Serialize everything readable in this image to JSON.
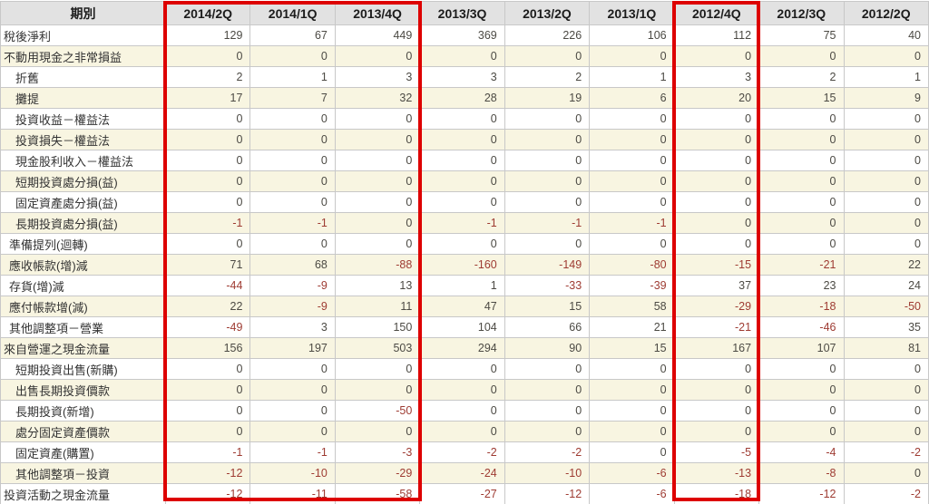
{
  "table": {
    "header_label": "期別",
    "columns": [
      "2014/2Q",
      "2014/1Q",
      "2013/4Q",
      "2013/3Q",
      "2013/2Q",
      "2013/1Q",
      "2012/4Q",
      "2012/3Q",
      "2012/2Q"
    ],
    "rows": [
      {
        "label": "稅後淨利",
        "indent": 0,
        "values": [
          129,
          67,
          449,
          369,
          226,
          106,
          112,
          75,
          40
        ]
      },
      {
        "label": "不動用現金之非常損益",
        "indent": 0,
        "values": [
          0,
          0,
          0,
          0,
          0,
          0,
          0,
          0,
          0
        ]
      },
      {
        "label": "折舊",
        "indent": 2,
        "values": [
          2,
          1,
          3,
          3,
          2,
          1,
          3,
          2,
          1
        ]
      },
      {
        "label": "攤提",
        "indent": 2,
        "values": [
          17,
          7,
          32,
          28,
          19,
          6,
          20,
          15,
          9
        ]
      },
      {
        "label": "投資收益－權益法",
        "indent": 2,
        "values": [
          0,
          0,
          0,
          0,
          0,
          0,
          0,
          0,
          0
        ]
      },
      {
        "label": "投資損失－權益法",
        "indent": 2,
        "values": [
          0,
          0,
          0,
          0,
          0,
          0,
          0,
          0,
          0
        ]
      },
      {
        "label": "現金股利收入－權益法",
        "indent": 2,
        "values": [
          0,
          0,
          0,
          0,
          0,
          0,
          0,
          0,
          0
        ]
      },
      {
        "label": "短期投資處分損(益)",
        "indent": 2,
        "values": [
          0,
          0,
          0,
          0,
          0,
          0,
          0,
          0,
          0
        ]
      },
      {
        "label": "固定資產處分損(益)",
        "indent": 2,
        "values": [
          0,
          0,
          0,
          0,
          0,
          0,
          0,
          0,
          0
        ]
      },
      {
        "label": "長期投資處分損(益)",
        "indent": 2,
        "values": [
          -1,
          -1,
          0,
          -1,
          -1,
          -1,
          0,
          0,
          0
        ]
      },
      {
        "label": "準備提列(迴轉)",
        "indent": 1,
        "values": [
          0,
          0,
          0,
          0,
          0,
          0,
          0,
          0,
          0
        ]
      },
      {
        "label": "應收帳款(增)減",
        "indent": 1,
        "values": [
          71,
          68,
          -88,
          -160,
          -149,
          -80,
          -15,
          -21,
          22
        ]
      },
      {
        "label": "存貨(增)減",
        "indent": 1,
        "values": [
          -44,
          -9,
          13,
          1,
          -33,
          -39,
          37,
          23,
          24
        ]
      },
      {
        "label": "應付帳款增(減)",
        "indent": 1,
        "values": [
          22,
          -9,
          11,
          47,
          15,
          58,
          -29,
          -18,
          -50
        ]
      },
      {
        "label": "其他調整項－營業",
        "indent": 1,
        "values": [
          -49,
          3,
          150,
          104,
          66,
          21,
          -21,
          -46,
          35
        ]
      },
      {
        "label": "來自營運之現金流量",
        "indent": 0,
        "values": [
          156,
          197,
          503,
          294,
          90,
          15,
          167,
          107,
          81
        ]
      },
      {
        "label": "短期投資出售(新購)",
        "indent": 2,
        "values": [
          0,
          0,
          0,
          0,
          0,
          0,
          0,
          0,
          0
        ]
      },
      {
        "label": "出售長期投資價款",
        "indent": 2,
        "values": [
          0,
          0,
          0,
          0,
          0,
          0,
          0,
          0,
          0
        ]
      },
      {
        "label": "長期投資(新增)",
        "indent": 2,
        "values": [
          0,
          0,
          -50,
          0,
          0,
          0,
          0,
          0,
          0
        ]
      },
      {
        "label": "處分固定資產價款",
        "indent": 2,
        "values": [
          0,
          0,
          0,
          0,
          0,
          0,
          0,
          0,
          0
        ]
      },
      {
        "label": "固定資產(購置)",
        "indent": 2,
        "values": [
          -1,
          -1,
          -3,
          -2,
          -2,
          0,
          -5,
          -4,
          -2
        ]
      },
      {
        "label": "其他調整項－投資",
        "indent": 2,
        "values": [
          -12,
          -10,
          -29,
          -24,
          -10,
          -6,
          -13,
          -8,
          0
        ]
      },
      {
        "label": "投資活動之現金流量",
        "indent": 0,
        "values": [
          -12,
          -11,
          -58,
          -27,
          -12,
          -6,
          -18,
          -12,
          -2
        ]
      }
    ]
  },
  "highlight_boxes": [
    {
      "name": "recent-quarters",
      "columns": [
        "2014/2Q",
        "2014/1Q",
        "2013/4Q"
      ]
    },
    {
      "name": "year-ago-quarter",
      "columns": [
        "2012/4Q"
      ]
    }
  ],
  "colors": {
    "accent_red": "#dd0000",
    "negative_number": "#9e3b32",
    "positive_number": "#4c4a44",
    "row_alt_bg": "#f8f5e1",
    "header_bg": "#e2e2e2",
    "grid_line": "#c8c8c8"
  },
  "chart_data": {
    "type": "table",
    "title": "季現金流量表",
    "categories": [
      "2014/2Q",
      "2014/1Q",
      "2013/4Q",
      "2013/3Q",
      "2013/2Q",
      "2013/1Q",
      "2012/4Q",
      "2012/3Q",
      "2012/2Q"
    ],
    "series": [
      {
        "name": "稅後淨利",
        "values": [
          129,
          67,
          449,
          369,
          226,
          106,
          112,
          75,
          40
        ]
      },
      {
        "name": "不動用現金之非常損益",
        "values": [
          0,
          0,
          0,
          0,
          0,
          0,
          0,
          0,
          0
        ]
      },
      {
        "name": "折舊",
        "values": [
          2,
          1,
          3,
          3,
          2,
          1,
          3,
          2,
          1
        ]
      },
      {
        "name": "攤提",
        "values": [
          17,
          7,
          32,
          28,
          19,
          6,
          20,
          15,
          9
        ]
      },
      {
        "name": "投資收益－權益法",
        "values": [
          0,
          0,
          0,
          0,
          0,
          0,
          0,
          0,
          0
        ]
      },
      {
        "name": "投資損失－權益法",
        "values": [
          0,
          0,
          0,
          0,
          0,
          0,
          0,
          0,
          0
        ]
      },
      {
        "name": "現金股利收入－權益法",
        "values": [
          0,
          0,
          0,
          0,
          0,
          0,
          0,
          0,
          0
        ]
      },
      {
        "name": "短期投資處分損(益)",
        "values": [
          0,
          0,
          0,
          0,
          0,
          0,
          0,
          0,
          0
        ]
      },
      {
        "name": "固定資產處分損(益)",
        "values": [
          0,
          0,
          0,
          0,
          0,
          0,
          0,
          0,
          0
        ]
      },
      {
        "name": "長期投資處分損(益)",
        "values": [
          -1,
          -1,
          0,
          -1,
          -1,
          -1,
          0,
          0,
          0
        ]
      },
      {
        "name": "準備提列(迴轉)",
        "values": [
          0,
          0,
          0,
          0,
          0,
          0,
          0,
          0,
          0
        ]
      },
      {
        "name": "應收帳款(增)減",
        "values": [
          71,
          68,
          -88,
          -160,
          -149,
          -80,
          -15,
          -21,
          22
        ]
      },
      {
        "name": "存貨(增)減",
        "values": [
          -44,
          -9,
          13,
          1,
          -33,
          -39,
          37,
          23,
          24
        ]
      },
      {
        "name": "應付帳款增(減)",
        "values": [
          22,
          -9,
          11,
          47,
          15,
          58,
          -29,
          -18,
          -50
        ]
      },
      {
        "name": "其他調整項－營業",
        "values": [
          -49,
          3,
          150,
          104,
          66,
          21,
          -21,
          -46,
          35
        ]
      },
      {
        "name": "來自營運之現金流量",
        "values": [
          156,
          197,
          503,
          294,
          90,
          15,
          167,
          107,
          81
        ]
      },
      {
        "name": "短期投資出售(新購)",
        "values": [
          0,
          0,
          0,
          0,
          0,
          0,
          0,
          0,
          0
        ]
      },
      {
        "name": "出售長期投資價款",
        "values": [
          0,
          0,
          0,
          0,
          0,
          0,
          0,
          0,
          0
        ]
      },
      {
        "name": "長期投資(新增)",
        "values": [
          0,
          0,
          -50,
          0,
          0,
          0,
          0,
          0,
          0
        ]
      },
      {
        "name": "處分固定資產價款",
        "values": [
          0,
          0,
          0,
          0,
          0,
          0,
          0,
          0,
          0
        ]
      },
      {
        "name": "固定資產(購置)",
        "values": [
          -1,
          -1,
          -3,
          -2,
          -2,
          0,
          -5,
          -4,
          -2
        ]
      },
      {
        "name": "其他調整項－投資",
        "values": [
          -12,
          -10,
          -29,
          -24,
          -10,
          -6,
          -13,
          -8,
          0
        ]
      },
      {
        "name": "投資活動之現金流量",
        "values": [
          -12,
          -11,
          -58,
          -27,
          -12,
          -6,
          -18,
          -12,
          -2
        ]
      }
    ]
  }
}
